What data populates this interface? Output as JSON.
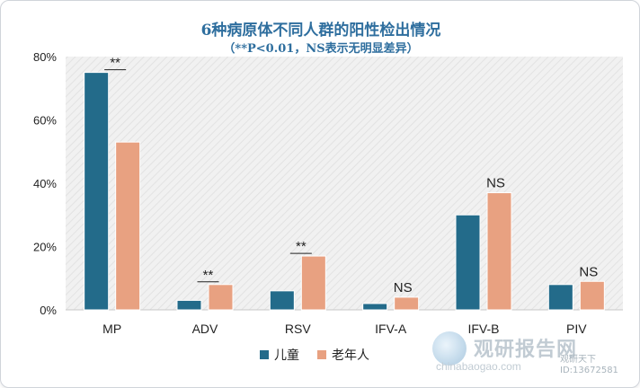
{
  "chart_data": {
    "type": "bar",
    "title": "6种病原体不同人群的阳性检出情况",
    "subtitle": "（**P<0.01，NS表示无明显差异）",
    "categories": [
      "MP",
      "ADV",
      "RSV",
      "IFV-A",
      "IFV-B",
      "PIV"
    ],
    "series": [
      {
        "name": "儿童",
        "color": "#236b8a",
        "values": [
          75,
          3,
          6,
          2,
          30,
          8
        ]
      },
      {
        "name": "老年人",
        "color": "#e8a181",
        "values": [
          53,
          8,
          17,
          4,
          37,
          9
        ]
      }
    ],
    "annotations": [
      "**",
      "**",
      "**",
      "NS",
      "NS",
      "NS"
    ],
    "ylim": [
      0,
      80
    ],
    "yticks": [
      "0%",
      "20%",
      "40%",
      "60%",
      "80%"
    ],
    "xlabel": "",
    "ylabel": "",
    "grid": false,
    "legend_position": "bottom",
    "plot_background": "hatched-light-gray"
  },
  "watermark": {
    "name": "观研报告网",
    "url": "chinabaogao.com",
    "tag": "观研天下",
    "id": "ID:13672581"
  }
}
